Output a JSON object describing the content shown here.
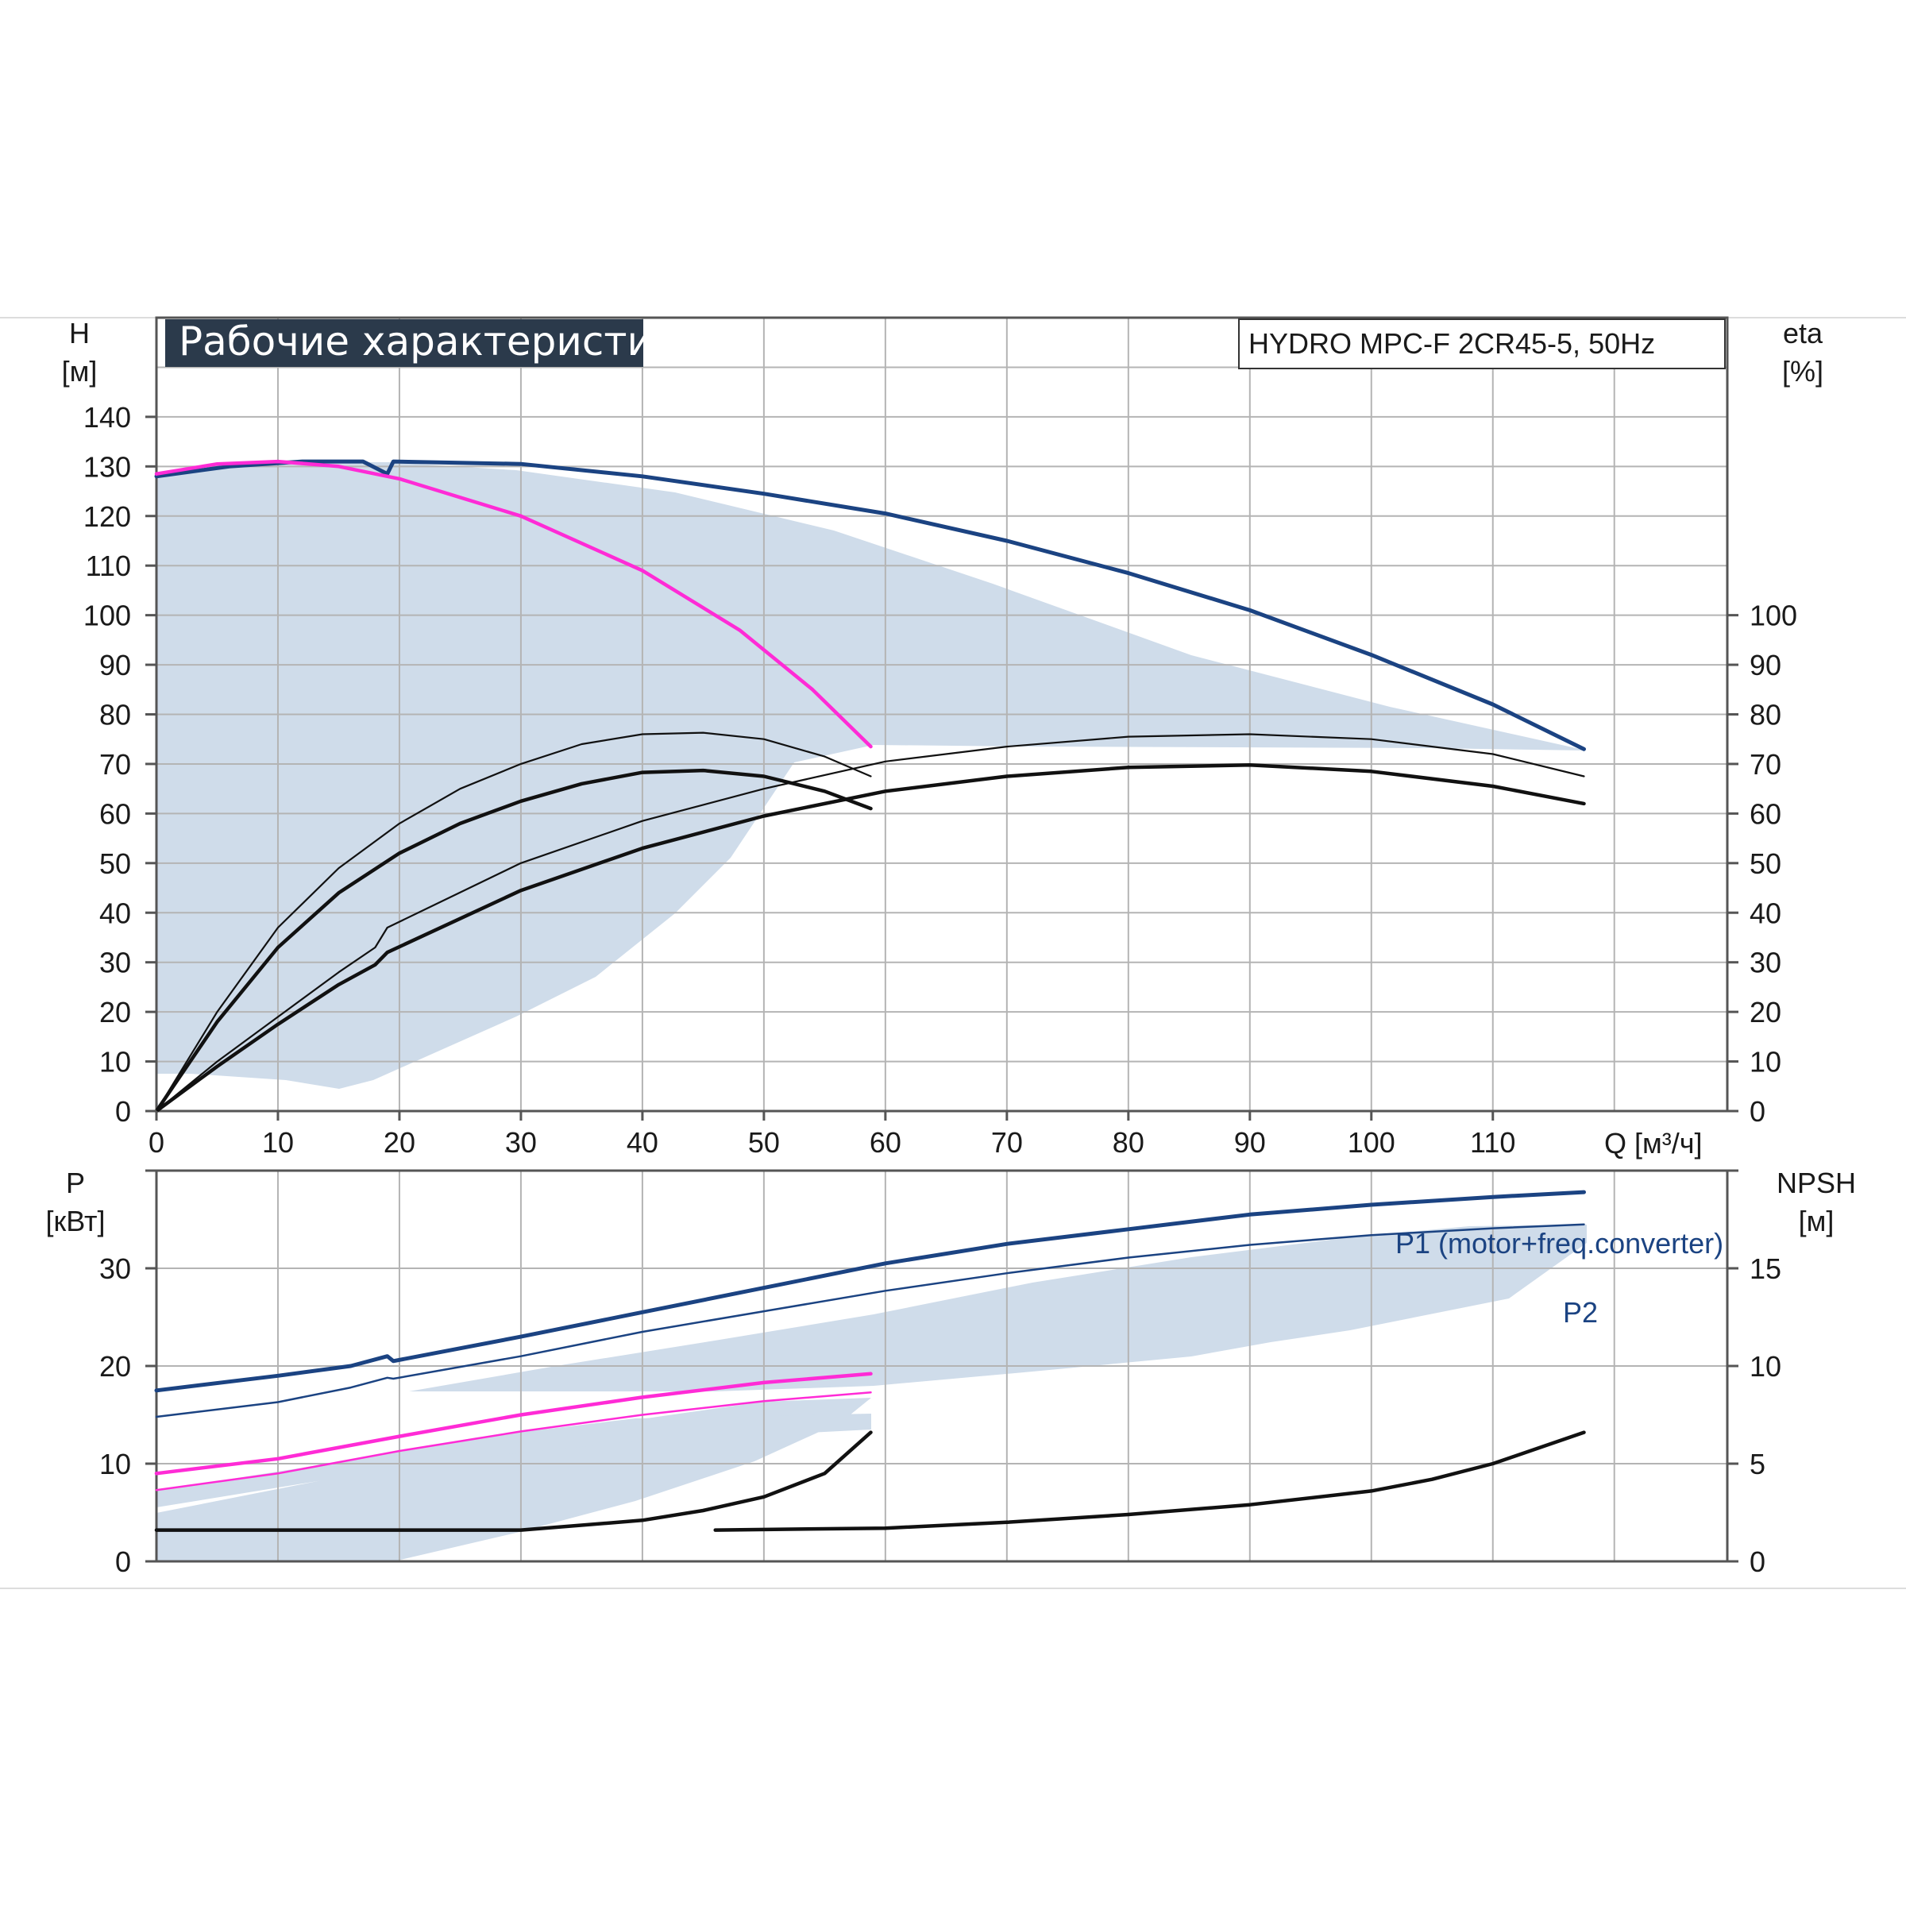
{
  "colors": {
    "band": "#cfdcea",
    "grid": "#b4b4b4",
    "axis": "#555555",
    "header_bg": "#2b3a4b",
    "blue_curve": "#1b4382",
    "magenta_curve": "#ff2bd6",
    "black_curve": "#111111"
  },
  "chart_data": [
    {
      "type": "line",
      "title": "Рабочие характеристики",
      "model_label": "HYDRO MPC-F 2CR45-5, 50Hz",
      "x_axis": {
        "unit_label": "Q [м³/ч]",
        "range": [
          0,
          129.3
        ],
        "ticks": [
          0,
          10,
          20,
          30,
          40,
          50,
          60,
          70,
          80,
          90,
          100,
          110
        ]
      },
      "y_left": {
        "name": "H",
        "unit": "[м]",
        "range": [
          0,
          160
        ],
        "ticks": [
          0,
          10,
          20,
          30,
          40,
          50,
          60,
          70,
          80,
          90,
          100,
          110,
          120,
          130,
          140
        ]
      },
      "y_right": {
        "name": "eta",
        "unit": "[%]",
        "range": [
          0,
          160
        ],
        "ticks": [
          0,
          10,
          20,
          30,
          40,
          50,
          60,
          70,
          80,
          90,
          100
        ]
      },
      "grid": true,
      "series": [
        {
          "color": "blue",
          "axis": "left",
          "points": [
            [
              0,
              128
            ],
            [
              6,
              130
            ],
            [
              12,
              131
            ],
            [
              17,
              131
            ],
            [
              19,
              128.5
            ],
            [
              19.5,
              131
            ],
            [
              30,
              130.5
            ],
            [
              40,
              128
            ],
            [
              50,
              124.5
            ],
            [
              60,
              120.5
            ],
            [
              70,
              115
            ],
            [
              80,
              108.5
            ],
            [
              90,
              101
            ],
            [
              100,
              92
            ],
            [
              110,
              82
            ],
            [
              117.5,
              73
            ]
          ]
        },
        {
          "color": "magenta",
          "axis": "left",
          "points": [
            [
              0,
              128.5
            ],
            [
              5,
              130.5
            ],
            [
              10,
              131
            ],
            [
              15,
              130
            ],
            [
              20,
              127.5
            ],
            [
              30,
              120
            ],
            [
              40,
              109
            ],
            [
              48,
              97
            ],
            [
              54,
              85
            ],
            [
              58.8,
              73.5
            ]
          ]
        },
        {
          "color": "black-thin",
          "axis": "right",
          "points": [
            [
              0,
              0
            ],
            [
              5,
              20
            ],
            [
              10,
              37
            ],
            [
              15,
              49
            ],
            [
              20,
              58
            ],
            [
              25,
              65
            ],
            [
              30,
              70
            ],
            [
              35,
              74
            ],
            [
              40,
              76
            ],
            [
              45,
              76.3
            ],
            [
              50,
              75
            ],
            [
              55,
              71.5
            ],
            [
              58.8,
              67.5
            ]
          ]
        },
        {
          "color": "black",
          "axis": "right",
          "points": [
            [
              0,
              0
            ],
            [
              5,
              18
            ],
            [
              10,
              33
            ],
            [
              15,
              44
            ],
            [
              20,
              52
            ],
            [
              25,
              58
            ],
            [
              30,
              62.5
            ],
            [
              35,
              66
            ],
            [
              40,
              68.3
            ],
            [
              45,
              68.7
            ],
            [
              50,
              67.5
            ],
            [
              55,
              64.5
            ],
            [
              58.8,
              61
            ]
          ]
        },
        {
          "color": "black-thin",
          "axis": "right",
          "points": [
            [
              0,
              0
            ],
            [
              5,
              10
            ],
            [
              10,
              19
            ],
            [
              15,
              28
            ],
            [
              18,
              33
            ],
            [
              19,
              37
            ],
            [
              30,
              50
            ],
            [
              40,
              58.5
            ],
            [
              50,
              65
            ],
            [
              60,
              70.5
            ],
            [
              70,
              73.5
            ],
            [
              80,
              75.5
            ],
            [
              90,
              76
            ],
            [
              100,
              75
            ],
            [
              110,
              72
            ],
            [
              117.5,
              67.5
            ]
          ]
        },
        {
          "color": "black",
          "axis": "right",
          "points": [
            [
              0,
              0
            ],
            [
              5,
              9
            ],
            [
              10,
              17.5
            ],
            [
              15,
              25.5
            ],
            [
              18,
              29.5
            ],
            [
              19,
              32
            ],
            [
              30,
              44.5
            ],
            [
              40,
              53
            ],
            [
              50,
              59.5
            ],
            [
              60,
              64.5
            ],
            [
              70,
              67.5
            ],
            [
              80,
              69.3
            ],
            [
              90,
              69.8
            ],
            [
              100,
              68.5
            ],
            [
              110,
              65.5
            ],
            [
              117.5,
              62
            ]
          ]
        }
      ]
    },
    {
      "type": "line",
      "x_axis": {
        "range": [
          0,
          129.3
        ],
        "ticks": [
          0,
          10,
          20,
          30,
          40,
          50,
          60,
          70,
          80,
          90,
          100,
          110
        ]
      },
      "y_left": {
        "name": "P",
        "unit": "[кВт]",
        "range": [
          0,
          40
        ],
        "ticks": [
          0,
          10,
          20,
          30
        ]
      },
      "y_right": {
        "name": "NPSH",
        "unit": "[м]",
        "range": [
          0,
          20
        ],
        "ticks": [
          0,
          5,
          10,
          15
        ]
      },
      "grid": true,
      "series": [
        {
          "name": "P1 (motor+freq.converter)",
          "color": "blue",
          "axis": "left",
          "points": [
            [
              0,
              17.5
            ],
            [
              10,
              19
            ],
            [
              16,
              20
            ],
            [
              19,
              21
            ],
            [
              19.5,
              20.5
            ],
            [
              30,
              23
            ],
            [
              40,
              25.5
            ],
            [
              50,
              28
            ],
            [
              60,
              30.5
            ],
            [
              70,
              32.5
            ],
            [
              80,
              34
            ],
            [
              90,
              35.5
            ],
            [
              100,
              36.5
            ],
            [
              110,
              37.3
            ],
            [
              117.5,
              37.8
            ]
          ]
        },
        {
          "name": "P2",
          "color": "blue-thin",
          "axis": "left",
          "points": [
            [
              0,
              14.8
            ],
            [
              10,
              16.3
            ],
            [
              16,
              17.8
            ],
            [
              19,
              18.8
            ],
            [
              19.5,
              18.7
            ],
            [
              30,
              21
            ],
            [
              40,
              23.5
            ],
            [
              50,
              25.6
            ],
            [
              60,
              27.7
            ],
            [
              70,
              29.5
            ],
            [
              80,
              31.1
            ],
            [
              90,
              32.4
            ],
            [
              100,
              33.4
            ],
            [
              110,
              34.1
            ],
            [
              117.5,
              34.5
            ]
          ]
        },
        {
          "color": "magenta",
          "axis": "left",
          "points": [
            [
              0,
              9
            ],
            [
              10,
              10.5
            ],
            [
              20,
              12.8
            ],
            [
              30,
              15
            ],
            [
              40,
              16.8
            ],
            [
              50,
              18.3
            ],
            [
              58.8,
              19.2
            ]
          ]
        },
        {
          "color": "magenta-thin",
          "axis": "left",
          "points": [
            [
              0,
              7.3
            ],
            [
              10,
              9
            ],
            [
              20,
              11.3
            ],
            [
              30,
              13.3
            ],
            [
              40,
              15
            ],
            [
              50,
              16.4
            ],
            [
              58.8,
              17.3
            ]
          ]
        },
        {
          "color": "black",
          "axis": "right",
          "points": [
            [
              0,
              1.6
            ],
            [
              20,
              1.6
            ],
            [
              30,
              1.6
            ],
            [
              40,
              2.1
            ],
            [
              45,
              2.6
            ],
            [
              50,
              3.3
            ],
            [
              55,
              4.5
            ],
            [
              58.8,
              6.6
            ]
          ]
        },
        {
          "color": "black",
          "axis": "right",
          "points": [
            [
              46,
              1.6
            ],
            [
              60,
              1.7
            ],
            [
              70,
              2
            ],
            [
              80,
              2.4
            ],
            [
              90,
              2.9
            ],
            [
              100,
              3.6
            ],
            [
              105,
              4.2
            ],
            [
              110,
              5
            ],
            [
              117.5,
              6.6
            ]
          ]
        }
      ]
    }
  ]
}
